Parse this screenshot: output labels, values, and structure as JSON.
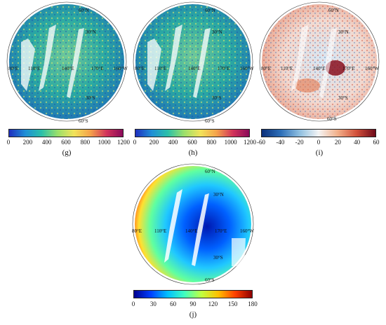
{
  "panels": [
    {
      "id": "g",
      "caption": "(g)",
      "map_labels": [
        "60°N",
        "30°N",
        "80°E",
        "110°E",
        "140°E",
        "170°E",
        "160°W",
        "30°S",
        "60°S"
      ],
      "colorbar": {
        "ticks": [
          "0",
          "200",
          "400",
          "600",
          "800",
          "1000",
          "1200"
        ],
        "colors": [
          "#1f2fbf",
          "#1f8fd6",
          "#2bc0a8",
          "#9be06a",
          "#f2e35a",
          "#f4a24a",
          "#d2335a",
          "#8a0a5a"
        ]
      }
    },
    {
      "id": "h",
      "caption": "(h)",
      "map_labels": [
        "60°N",
        "30°N",
        "80°E",
        "110°E",
        "140°E",
        "170°E",
        "160°W",
        "30°S",
        "60°S"
      ],
      "colorbar": {
        "ticks": [
          "0",
          "200",
          "400",
          "600",
          "800",
          "1000",
          "1200"
        ],
        "colors": [
          "#1f2fbf",
          "#1f8fd6",
          "#2bc0a8",
          "#9be06a",
          "#f2e35a",
          "#f4a24a",
          "#d2335a",
          "#8a0a5a"
        ]
      }
    },
    {
      "id": "i",
      "caption": "(i)",
      "map_labels": [
        "60°N",
        "30°N",
        "80°E",
        "110°E",
        "140°E",
        "170°E",
        "160°W",
        "30°S",
        "60°S"
      ],
      "colorbar": {
        "ticks": [
          "-60",
          "-40",
          "-20",
          "0",
          "20",
          "40",
          "60"
        ],
        "colors": [
          "#0b2f7a",
          "#2d6fb8",
          "#8fbfe0",
          "#f4f4f4",
          "#f2b08a",
          "#d2503a",
          "#6e0a1a"
        ]
      }
    },
    {
      "id": "j",
      "caption": "(j)",
      "map_labels": [
        "60°N",
        "30°N",
        "80°E",
        "110°E",
        "140°E",
        "170°E",
        "160°W",
        "30°S",
        "60°S"
      ],
      "colorbar": {
        "ticks": [
          "0",
          "30",
          "60",
          "90",
          "120",
          "150",
          "180"
        ],
        "colors": [
          "#00008f",
          "#0040ff",
          "#00c0ff",
          "#40ffbf",
          "#c0ff40",
          "#ffc000",
          "#ff4000",
          "#8f0000"
        ]
      }
    }
  ]
}
